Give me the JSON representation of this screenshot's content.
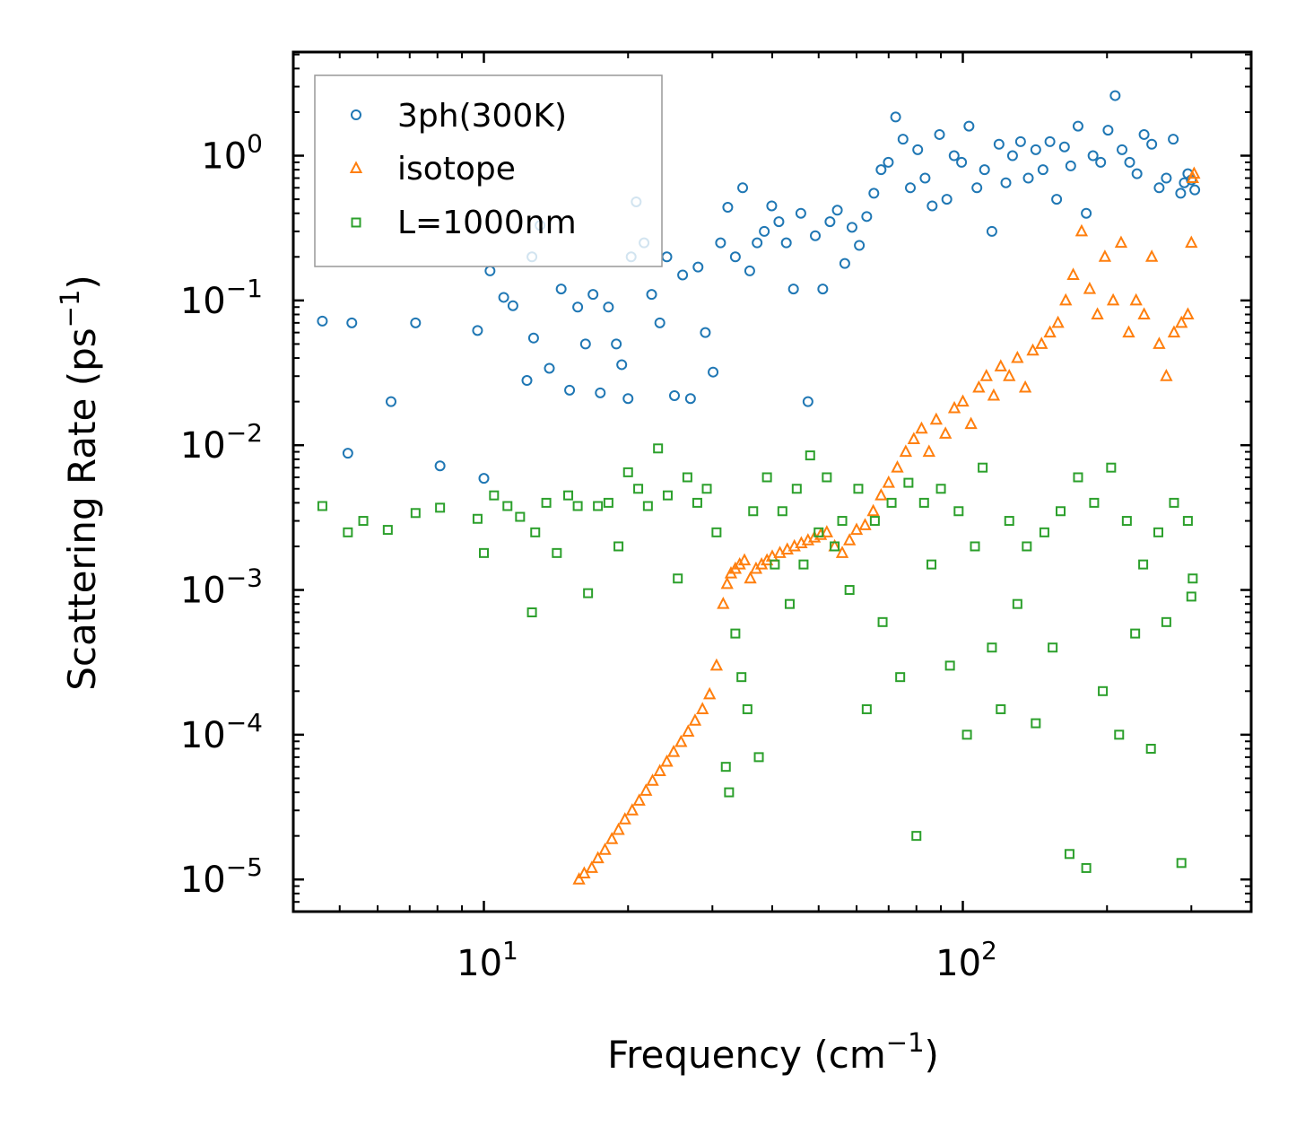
{
  "chart_data": {
    "type": "scatter",
    "title": "",
    "xlabel": {
      "text": "Frequency (cm",
      "sup": "−1",
      "close": ")"
    },
    "ylabel": {
      "text": "Scattering Rate (ps",
      "sup": "−1",
      "close": ")"
    },
    "xscale": "log",
    "yscale": "log",
    "xlim": [
      4,
      400
    ],
    "ylim": [
      6e-06,
      5.2
    ],
    "x_major_ticks": [
      {
        "value": 10,
        "base": "10",
        "exp": "1"
      },
      {
        "value": 100,
        "base": "10",
        "exp": "2"
      }
    ],
    "y_major_ticks": [
      {
        "value": 1,
        "base": "10",
        "exp": "0"
      },
      {
        "value": 0.1,
        "base": "10",
        "exp": "−1"
      },
      {
        "value": 0.01,
        "base": "10",
        "exp": "−2"
      },
      {
        "value": 0.001,
        "base": "10",
        "exp": "−3"
      },
      {
        "value": 0.0001,
        "base": "10",
        "exp": "−4"
      },
      {
        "value": 1e-05,
        "base": "10",
        "exp": "−5"
      }
    ],
    "grid": false,
    "legend_position": "top-left",
    "series": [
      {
        "name": "3ph(300K)",
        "marker": "circle",
        "color": "#1f77b4",
        "x": [
          4.6,
          5.2,
          5.3,
          6.4,
          7.2,
          8.1,
          9.7,
          10.0,
          10.3,
          11.0,
          11.5,
          12.3,
          12.6,
          12.7,
          13.1,
          13.7,
          14.5,
          15.1,
          15.7,
          16.3,
          16.9,
          17.5,
          18.2,
          18.9,
          19.4,
          20.0,
          20.3,
          20.8,
          21.6,
          22.4,
          23.3,
          24.1,
          25.0,
          26.0,
          27.0,
          28.0,
          29.0,
          30.1,
          31.2,
          32.3,
          33.5,
          34.7,
          35.9,
          37.2,
          38.5,
          39.9,
          41.3,
          42.8,
          44.3,
          45.9,
          47.5,
          49.2,
          51.0,
          52.8,
          54.7,
          56.7,
          58.7,
          60.8,
          63.0,
          65.2,
          67.5,
          69.9,
          72.4,
          75.0,
          77.7,
          80.5,
          83.4,
          86.3,
          89.4,
          92.6,
          95.9,
          99.4,
          103,
          107,
          111,
          115,
          119,
          123,
          127,
          132,
          137,
          142,
          147,
          152,
          157,
          163,
          168,
          174,
          181,
          187,
          194,
          201,
          208,
          215,
          223,
          231,
          239,
          248,
          257,
          266,
          275,
          285,
          290,
          295,
          300,
          305
        ],
        "y": [
          0.072,
          0.0088,
          0.07,
          0.02,
          0.07,
          0.0072,
          0.062,
          0.0059,
          0.16,
          0.105,
          0.092,
          0.028,
          0.2,
          0.055,
          0.33,
          0.034,
          0.12,
          0.024,
          0.09,
          0.05,
          0.11,
          0.023,
          0.09,
          0.05,
          0.036,
          0.021,
          0.2,
          0.48,
          0.25,
          0.11,
          0.07,
          0.2,
          0.022,
          0.15,
          0.021,
          0.17,
          0.06,
          0.032,
          0.25,
          0.44,
          0.2,
          0.6,
          0.16,
          0.25,
          0.3,
          0.45,
          0.35,
          0.25,
          0.12,
          0.4,
          0.02,
          0.28,
          0.12,
          0.35,
          0.42,
          0.18,
          0.32,
          0.24,
          0.38,
          0.55,
          0.8,
          0.9,
          1.85,
          1.3,
          0.6,
          1.1,
          0.7,
          0.45,
          1.4,
          0.5,
          1.0,
          0.9,
          1.6,
          0.6,
          0.8,
          0.3,
          1.2,
          0.65,
          1.0,
          1.25,
          0.7,
          1.1,
          0.8,
          1.25,
          0.5,
          1.15,
          0.85,
          1.6,
          0.4,
          1.0,
          0.9,
          1.5,
          2.6,
          1.1,
          0.9,
          0.75,
          1.4,
          1.2,
          0.6,
          0.7,
          1.3,
          0.55,
          0.65,
          0.75,
          0.68,
          0.58
        ]
      },
      {
        "name": "isotope",
        "marker": "triangle",
        "color": "#ff7f0e",
        "x": [
          15.8,
          16.2,
          16.8,
          17.3,
          17.9,
          18.5,
          19.1,
          19.7,
          20.4,
          21.1,
          21.8,
          22.5,
          23.3,
          24.1,
          24.9,
          25.8,
          26.7,
          27.6,
          28.6,
          29.6,
          30.6,
          31.6,
          32.2,
          32.8,
          33.5,
          34.2,
          35.0,
          36.0,
          37.0,
          38.0,
          39.0,
          40.0,
          41.5,
          43.0,
          44.5,
          46.0,
          47.5,
          49.0,
          50.5,
          52.0,
          54.0,
          56.0,
          58.0,
          60.0,
          62.5,
          65.0,
          67.5,
          70.0,
          73.0,
          76.0,
          79.0,
          82.0,
          85.0,
          88.0,
          92.0,
          96.0,
          100,
          104,
          108,
          112,
          116,
          120,
          125,
          130,
          135,
          140,
          146,
          152,
          158,
          164,
          170,
          177,
          184,
          191,
          198,
          206,
          214,
          222,
          230,
          239,
          248,
          257,
          266,
          276,
          286,
          295,
          300,
          302,
          304
        ],
        "y": [
          1e-05,
          1.1e-05,
          1.2e-05,
          1.4e-05,
          1.6e-05,
          1.9e-05,
          2.2e-05,
          2.6e-05,
          3e-05,
          3.5e-05,
          4.1e-05,
          4.8e-05,
          5.6e-05,
          6.5e-05,
          7.6e-05,
          8.9e-05,
          0.000105,
          0.000125,
          0.00015,
          0.00019,
          0.0003,
          0.0008,
          0.0011,
          0.0013,
          0.0014,
          0.0015,
          0.0016,
          0.0012,
          0.0014,
          0.0015,
          0.0016,
          0.0017,
          0.0018,
          0.0019,
          0.002,
          0.0021,
          0.0022,
          0.0023,
          0.0024,
          0.0025,
          0.002,
          0.0018,
          0.0022,
          0.0026,
          0.0028,
          0.0035,
          0.0045,
          0.0055,
          0.007,
          0.009,
          0.011,
          0.013,
          0.009,
          0.015,
          0.012,
          0.018,
          0.02,
          0.014,
          0.025,
          0.03,
          0.022,
          0.035,
          0.03,
          0.04,
          0.025,
          0.045,
          0.05,
          0.06,
          0.07,
          0.1,
          0.15,
          0.3,
          0.12,
          0.08,
          0.2,
          0.1,
          0.25,
          0.06,
          0.1,
          0.08,
          0.2,
          0.05,
          0.03,
          0.06,
          0.07,
          0.08,
          0.25,
          0.7,
          0.75
        ]
      },
      {
        "name": "L=1000nm",
        "marker": "square",
        "color": "#2ca02c",
        "x": [
          4.6,
          5.2,
          5.6,
          6.3,
          7.2,
          8.1,
          9.7,
          10.0,
          10.5,
          11.2,
          11.9,
          12.6,
          12.8,
          13.5,
          14.2,
          15.0,
          15.7,
          16.5,
          17.3,
          18.2,
          19.1,
          20.0,
          21.0,
          22.0,
          23.1,
          24.2,
          25.4,
          26.6,
          27.9,
          29.2,
          30.6,
          32.0,
          32.5,
          33.5,
          34.5,
          35.5,
          36.5,
          37.5,
          39.0,
          40.5,
          42.0,
          43.5,
          45.0,
          46.5,
          48.0,
          50.0,
          52.0,
          54.0,
          56.0,
          58.0,
          60.5,
          63.0,
          65.5,
          68.0,
          71.0,
          74.0,
          77.0,
          80.0,
          83.0,
          86.0,
          90.0,
          94.0,
          98.0,
          102,
          106,
          110,
          115,
          120,
          125,
          130,
          136,
          142,
          148,
          154,
          160,
          167,
          174,
          181,
          188,
          196,
          204,
          212,
          220,
          229,
          238,
          247,
          256,
          266,
          276,
          286,
          295,
          300,
          302
        ],
        "y": [
          0.0038,
          0.0025,
          0.003,
          0.0026,
          0.0034,
          0.0037,
          0.0031,
          0.0018,
          0.0045,
          0.0038,
          0.0032,
          0.0007,
          0.0025,
          0.004,
          0.0018,
          0.0045,
          0.0038,
          0.00095,
          0.0038,
          0.004,
          0.002,
          0.0065,
          0.005,
          0.0038,
          0.0095,
          0.0045,
          0.0012,
          0.006,
          0.004,
          0.005,
          0.0025,
          6e-05,
          4e-05,
          0.0005,
          0.00025,
          0.00015,
          0.0035,
          7e-05,
          0.006,
          0.0015,
          0.0035,
          0.0008,
          0.005,
          0.0015,
          0.0085,
          0.0025,
          0.006,
          0.002,
          0.003,
          0.001,
          0.005,
          0.00015,
          0.003,
          0.0006,
          0.004,
          0.00025,
          0.0055,
          2e-05,
          0.004,
          0.0015,
          0.005,
          0.0003,
          0.0035,
          0.0001,
          0.002,
          0.007,
          0.0004,
          0.00015,
          0.003,
          0.0008,
          0.002,
          0.00012,
          0.0025,
          0.0004,
          0.0035,
          1.5e-05,
          0.006,
          1.2e-05,
          0.004,
          0.0002,
          0.007,
          0.0001,
          0.003,
          0.0005,
          0.0015,
          8e-05,
          0.0025,
          0.0006,
          0.004,
          1.3e-05,
          0.003,
          0.0009,
          0.0012
        ]
      }
    ]
  }
}
